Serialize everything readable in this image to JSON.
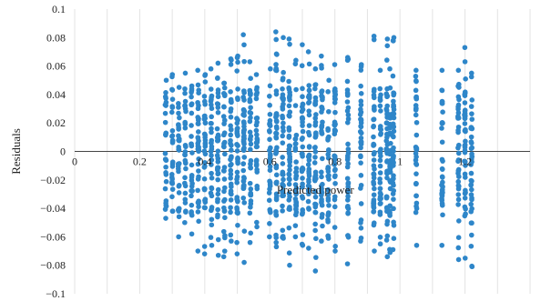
{
  "chart_data": {
    "type": "scatter",
    "title": "",
    "xlabel": "Predicted power",
    "ylabel": "Residuals",
    "xlim": [
      0,
      1.4
    ],
    "ylim": [
      -0.1,
      0.1
    ],
    "x_ticks": [
      0,
      0.2,
      0.4,
      0.6,
      0.8,
      1,
      1.2
    ],
    "x_tick_labels": [
      "0",
      "0.2",
      "0.4",
      "0.6",
      "0.8",
      "1",
      "1.2"
    ],
    "y_ticks": [
      0.1,
      0.08,
      0.06,
      0.04,
      0.02,
      0,
      -0.02,
      -0.04,
      -0.06,
      -0.08,
      -0.1
    ],
    "y_tick_labels": [
      "0.1",
      "0.08",
      "0.06",
      "0.04",
      "0.02",
      "0",
      "−0.02",
      "−0.04",
      "−0.06",
      "−0.08",
      "−0.1"
    ],
    "grid": "vertical",
    "marker_color": "#2e86c9",
    "series": [
      {
        "columns": [
          {
            "x": 0.28,
            "ymin": -0.047,
            "ymax": 0.05
          },
          {
            "x": 0.3,
            "ymin": -0.042,
            "ymax": 0.054
          },
          {
            "x": 0.32,
            "ymin": -0.06,
            "ymax": 0.045
          },
          {
            "x": 0.34,
            "ymin": -0.05,
            "ymax": 0.055
          },
          {
            "x": 0.36,
            "ymin": -0.058,
            "ymax": 0.046
          },
          {
            "x": 0.38,
            "ymin": -0.07,
            "ymax": 0.057
          },
          {
            "x": 0.4,
            "ymin": -0.072,
            "ymax": 0.054
          },
          {
            "x": 0.42,
            "ymin": -0.066,
            "ymax": 0.058
          },
          {
            "x": 0.44,
            "ymin": -0.073,
            "ymax": 0.062
          },
          {
            "x": 0.46,
            "ymin": -0.074,
            "ymax": 0.048
          },
          {
            "x": 0.48,
            "ymin": -0.063,
            "ymax": 0.065
          },
          {
            "x": 0.5,
            "ymin": -0.072,
            "ymax": 0.067
          },
          {
            "x": 0.52,
            "ymin": -0.078,
            "ymax": 0.082
          },
          {
            "x": 0.54,
            "ymin": -0.064,
            "ymax": 0.063
          },
          {
            "x": 0.56,
            "ymin": -0.053,
            "ymax": 0.054
          },
          {
            "x": 0.6,
            "ymin": -0.06,
            "ymax": 0.058
          },
          {
            "x": 0.62,
            "ymin": -0.067,
            "ymax": 0.084
          },
          {
            "x": 0.64,
            "ymin": -0.061,
            "ymax": 0.08
          },
          {
            "x": 0.66,
            "ymin": -0.08,
            "ymax": 0.079
          },
          {
            "x": 0.68,
            "ymin": -0.06,
            "ymax": 0.064
          },
          {
            "x": 0.7,
            "ymin": -0.066,
            "ymax": 0.075
          },
          {
            "x": 0.72,
            "ymin": -0.068,
            "ymax": 0.07
          },
          {
            "x": 0.74,
            "ymin": -0.084,
            "ymax": 0.058
          },
          {
            "x": 0.76,
            "ymin": -0.063,
            "ymax": 0.067
          },
          {
            "x": 0.78,
            "ymin": -0.061,
            "ymax": 0.05
          },
          {
            "x": 0.8,
            "ymin": -0.07,
            "ymax": 0.061
          },
          {
            "x": 0.84,
            "ymin": -0.079,
            "ymax": 0.066
          },
          {
            "x": 0.88,
            "ymin": -0.063,
            "ymax": 0.061
          },
          {
            "x": 0.92,
            "ymin": -0.07,
            "ymax": 0.081
          },
          {
            "x": 0.94,
            "ymin": -0.065,
            "ymax": 0.057
          },
          {
            "x": 0.96,
            "ymin": -0.074,
            "ymax": 0.079
          },
          {
            "x": 0.97,
            "ymin": -0.071,
            "ymax": 0.058
          },
          {
            "x": 0.98,
            "ymin": -0.069,
            "ymax": 0.08
          },
          {
            "x": 1.05,
            "ymin": -0.066,
            "ymax": 0.057
          },
          {
            "x": 1.13,
            "ymin": -0.066,
            "ymax": 0.057
          },
          {
            "x": 1.18,
            "ymin": -0.076,
            "ymax": 0.057
          },
          {
            "x": 1.2,
            "ymin": -0.075,
            "ymax": 0.073
          },
          {
            "x": 1.22,
            "ymin": -0.081,
            "ymax": 0.055
          }
        ]
      }
    ]
  }
}
